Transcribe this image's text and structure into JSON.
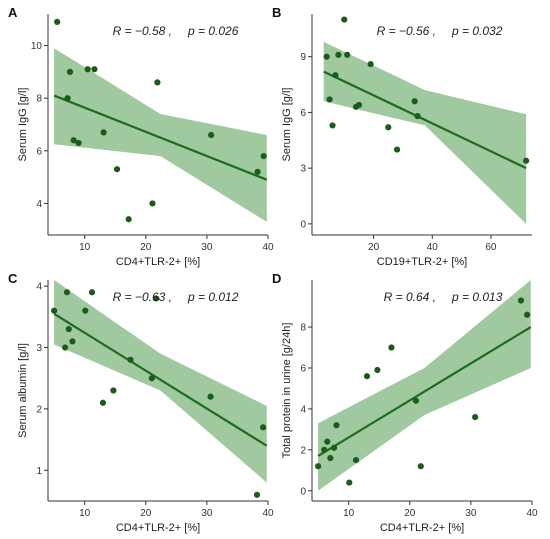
{
  "chart_data": [
    {
      "type": "scatter",
      "panel_label": "A",
      "xlabel": "CD4+TLR-2+ [%]",
      "ylabel": "Serum IgG [g/l]",
      "stat_r": "R = −0.58 ,",
      "stat_p": "p = 0.026",
      "xlim": [
        4,
        40
      ],
      "ylim": [
        2.8,
        11.2
      ],
      "xticks": [
        10,
        20,
        30,
        40
      ],
      "yticks": [
        4,
        6,
        8,
        10
      ],
      "x": [
        5.5,
        7.2,
        7.6,
        8.2,
        9.0,
        10.5,
        11.6,
        13.1,
        15.3,
        17.2,
        21.1,
        21.9,
        30.7,
        38.3,
        39.3
      ],
      "y": [
        10.9,
        8.0,
        9.0,
        6.4,
        6.3,
        9.1,
        9.1,
        6.7,
        5.3,
        3.4,
        4.0,
        8.6,
        6.6,
        5.2,
        5.8
      ],
      "fit": {
        "x": [
          5.0,
          39.8
        ],
        "y": [
          8.1,
          4.9
        ]
      },
      "band": {
        "x": [
          5.0,
          22.4,
          39.8
        ],
        "lower": [
          6.25,
          5.8,
          3.3
        ],
        "upper": [
          9.9,
          7.4,
          6.6
        ]
      }
    },
    {
      "type": "scatter",
      "panel_label": "B",
      "xlabel": "CD19+TLR-2+ [%]",
      "ylabel": "Serum IgG [g/l]",
      "stat_r": "R = −0.56 ,",
      "stat_p": "p = 0.032",
      "xlim": [
        -1,
        74
      ],
      "ylim": [
        -0.6,
        11.3
      ],
      "xticks": [
        20,
        40,
        60
      ],
      "yticks": [
        0,
        3,
        6,
        9
      ],
      "x": [
        4.0,
        5.0,
        6.0,
        7.0,
        8.0,
        10.0,
        11.0,
        14.0,
        15.0,
        19.0,
        25.0,
        28.0,
        34.0,
        35.0,
        72.0
      ],
      "y": [
        9.0,
        6.7,
        5.3,
        8.0,
        9.1,
        11.0,
        9.1,
        6.3,
        6.4,
        8.6,
        5.2,
        4.0,
        6.6,
        5.8,
        3.4
      ],
      "fit": {
        "x": [
          3.0,
          72.0
        ],
        "y": [
          8.2,
          3.0
        ]
      },
      "band": {
        "x": [
          3.0,
          37.5,
          72.0
        ],
        "lower": [
          6.6,
          5.3,
          0.0
        ],
        "upper": [
          9.8,
          7.2,
          5.9
        ]
      }
    },
    {
      "type": "scatter",
      "panel_label": "C",
      "xlabel": "CD4+TLR-2+ [%]",
      "ylabel": "Serum albumin [g/l]",
      "stat_r": "R = −0.63 ,",
      "stat_p": "p = 0.012",
      "xlim": [
        4,
        40
      ],
      "ylim": [
        0.5,
        4.1
      ],
      "xticks": [
        10,
        20,
        30,
        40
      ],
      "yticks": [
        1,
        2,
        3,
        4
      ],
      "x": [
        5.0,
        6.8,
        7.1,
        7.4,
        8.0,
        10.1,
        11.2,
        13.0,
        14.7,
        17.5,
        21.0,
        21.7,
        30.6,
        38.2,
        39.2
      ],
      "y": [
        3.6,
        3.0,
        3.9,
        3.3,
        3.1,
        3.6,
        3.9,
        2.1,
        2.3,
        2.8,
        2.5,
        3.8,
        2.2,
        0.6,
        1.7
      ],
      "fit": {
        "x": [
          5.0,
          39.8
        ],
        "y": [
          3.55,
          1.4
        ]
      },
      "band": {
        "x": [
          5.0,
          22.4,
          39.8
        ],
        "lower": [
          3.05,
          2.3,
          0.8
        ],
        "upper": [
          4.1,
          2.9,
          2.05
        ]
      }
    },
    {
      "type": "scatter",
      "panel_label": "D",
      "xlabel": "CD4+TLR-2+ [%]",
      "ylabel": "Total protein in urine [g/24h]",
      "stat_r": "R = 0.64 ,",
      "stat_p": "p = 0.013",
      "xlim": [
        4,
        40
      ],
      "ylim": [
        -0.5,
        10.3
      ],
      "xticks": [
        10,
        20,
        30,
        40
      ],
      "yticks": [
        0,
        2,
        4,
        6,
        8
      ],
      "x": [
        5.0,
        6.0,
        6.5,
        7.0,
        7.6,
        8.0,
        10.1,
        11.2,
        13.0,
        14.7,
        17.0,
        21.0,
        21.8,
        30.7,
        38.2,
        39.2
      ],
      "y": [
        1.2,
        2.0,
        2.4,
        1.6,
        2.1,
        3.2,
        0.4,
        1.5,
        5.6,
        5.9,
        7.0,
        4.4,
        1.2,
        3.6,
        9.3,
        8.6
      ],
      "fit": {
        "x": [
          5.0,
          39.8
        ],
        "y": [
          1.7,
          8.0
        ]
      },
      "band": {
        "x": [
          5.0,
          22.4,
          39.8
        ],
        "lower": [
          0.0,
          3.7,
          6.0
        ],
        "upper": [
          3.3,
          6.0,
          10.3
        ]
      }
    }
  ]
}
